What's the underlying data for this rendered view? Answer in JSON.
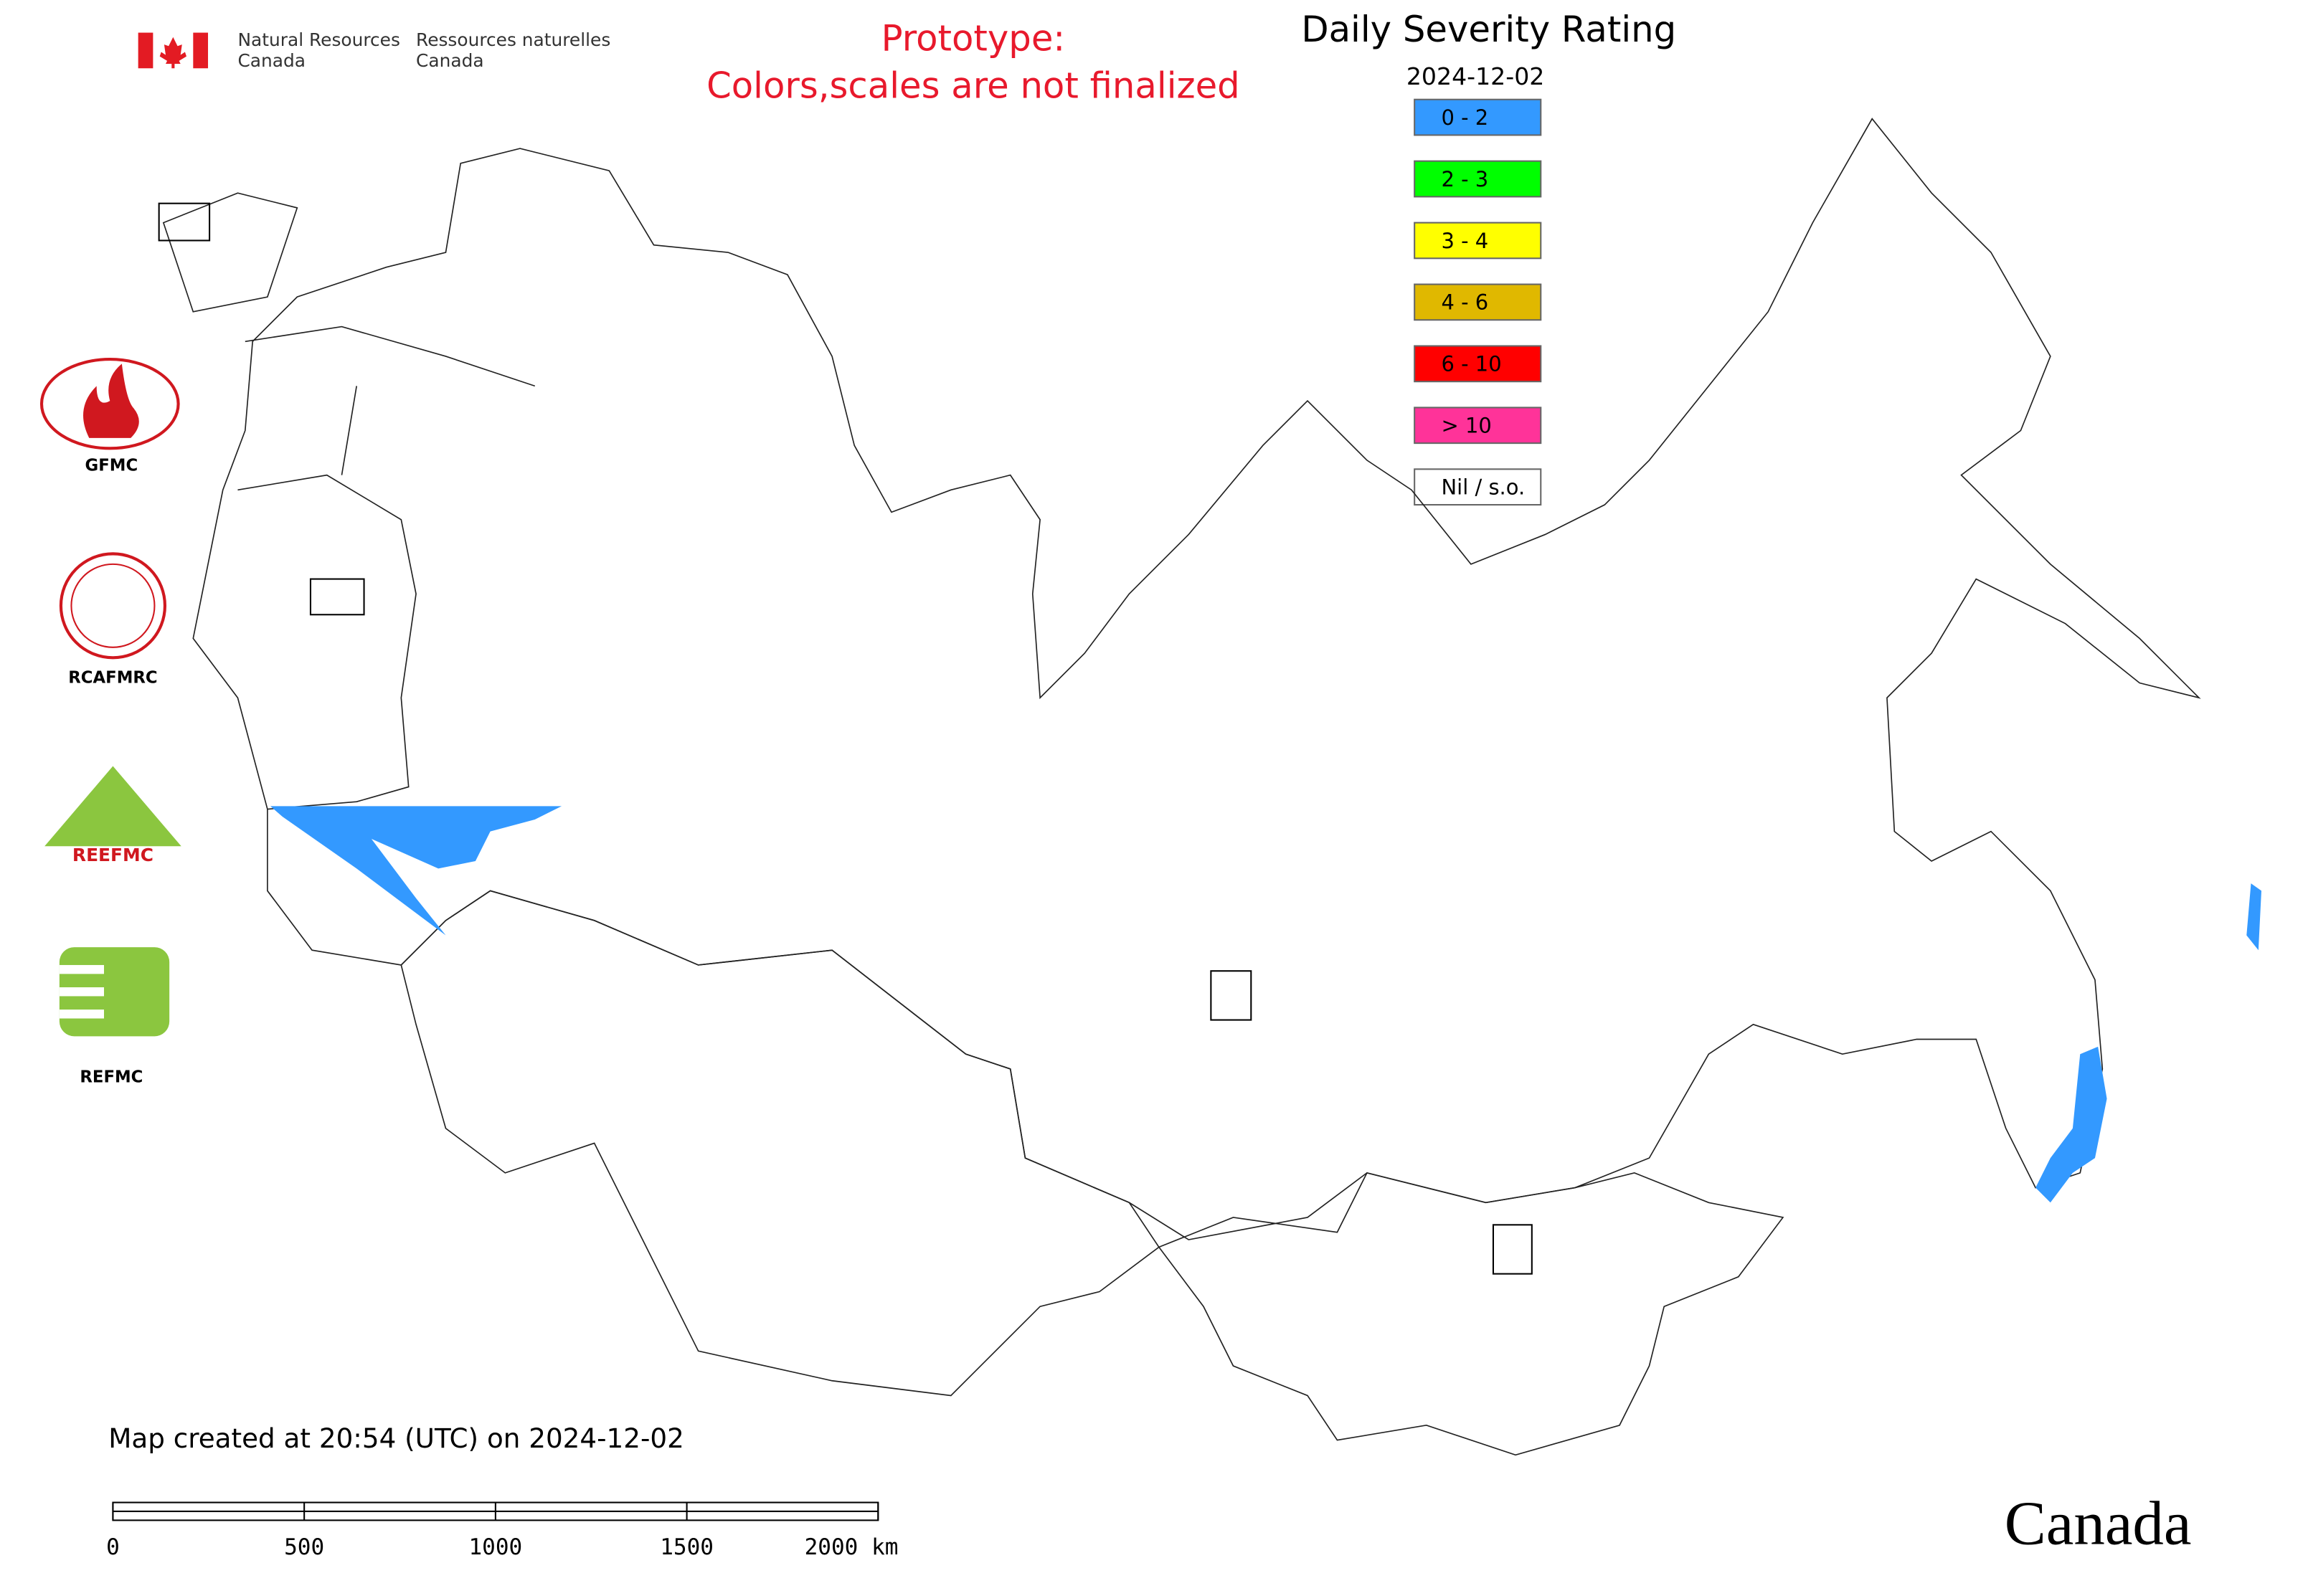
{
  "header": {
    "agency_en_1": "Natural Resources",
    "agency_en_2": "Canada",
    "agency_fr_1": "Ressources naturelles",
    "agency_fr_2": "Canada"
  },
  "notice": {
    "line1": "Prototype:",
    "line2": "Colors,scales are not finalized"
  },
  "legend": {
    "title": "Daily Severity Rating",
    "date": "2024-12-02",
    "items": [
      {
        "label": "0 - 2",
        "color": "#3399ff"
      },
      {
        "label": "2 - 3",
        "color": "#00ff00"
      },
      {
        "label": "3 - 4",
        "color": "#ffff00"
      },
      {
        "label": "4 - 6",
        "color": "#e0b800"
      },
      {
        "label": "6 - 10",
        "color": "#ff0000"
      },
      {
        "label": "> 10",
        "color": "#ff3399"
      },
      {
        "label": "Nil / s.o.",
        "color": "#ffffff"
      }
    ]
  },
  "logos": {
    "gfmc": "GFMC",
    "rcafmrc": "RCAFMRC",
    "reefmc": "REEFMC",
    "refmc": "REFMC"
  },
  "footer": {
    "created": "Map created at 20:54 (UTC) on 2024-12-02",
    "scale_ticks": [
      "0",
      "500",
      "1000",
      "1500",
      "2000 km"
    ],
    "wordmark": "Canada"
  }
}
